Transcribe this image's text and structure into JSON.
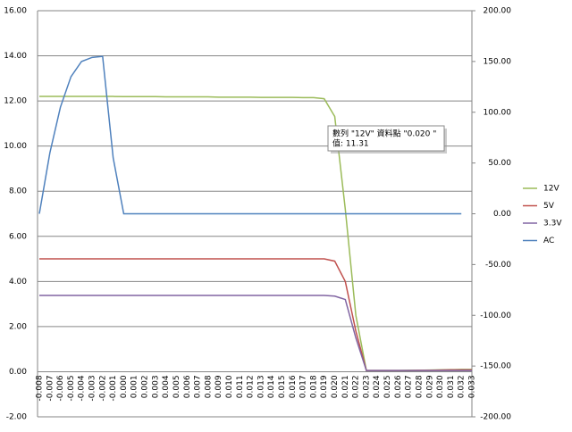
{
  "chart_data": {
    "type": "line",
    "categories": [
      "-0.008",
      "-0.007",
      "-0.006",
      "-0.005",
      "-0.004",
      "-0.003",
      "-0.002",
      "-0.001",
      "0.000",
      "0.001",
      "0.002",
      "0.003",
      "0.004",
      "0.005",
      "0.006",
      "0.007",
      "0.008",
      "0.009",
      "0.010",
      "0.011",
      "0.012",
      "0.013",
      "0.014",
      "0.015",
      "0.016",
      "0.017",
      "0.018",
      "0.019",
      "0.020",
      "0.021",
      "0.022",
      "0.023",
      "0.024",
      "0.025",
      "0.026",
      "0.027",
      "0.028",
      "0.029",
      "0.030",
      "0.031",
      "0.032",
      "0.033"
    ],
    "series": [
      {
        "name": "12V",
        "color": "#9bbb59",
        "values": [
          12.2,
          12.2,
          12.2,
          12.2,
          12.2,
          12.2,
          12.2,
          12.2,
          12.19,
          12.19,
          12.19,
          12.19,
          12.18,
          12.18,
          12.18,
          12.18,
          12.18,
          12.17,
          12.17,
          12.17,
          12.17,
          12.16,
          12.16,
          12.16,
          12.16,
          12.15,
          12.15,
          12.1,
          11.31,
          7.2,
          2.5,
          0.05,
          0.05,
          0.05,
          0.05,
          0.06,
          0.06,
          0.07,
          0.08,
          0.09,
          0.1,
          0.1
        ]
      },
      {
        "name": "5V",
        "color": "#c0504d",
        "values": [
          5.0,
          5.0,
          5.0,
          5.0,
          5.0,
          5.0,
          5.0,
          5.0,
          5.0,
          5.0,
          5.0,
          5.0,
          5.0,
          5.0,
          5.0,
          5.0,
          5.0,
          5.0,
          5.0,
          5.0,
          5.0,
          5.0,
          5.0,
          5.0,
          5.0,
          5.0,
          5.0,
          5.0,
          4.9,
          4.0,
          1.8,
          0.05,
          0.05,
          0.05,
          0.05,
          0.05,
          0.06,
          0.06,
          0.07,
          0.08,
          0.08,
          0.08
        ]
      },
      {
        "name": "3.3V",
        "color": "#8064a2",
        "values": [
          3.38,
          3.38,
          3.38,
          3.38,
          3.38,
          3.38,
          3.38,
          3.38,
          3.38,
          3.38,
          3.38,
          3.38,
          3.38,
          3.38,
          3.38,
          3.38,
          3.38,
          3.38,
          3.38,
          3.38,
          3.38,
          3.38,
          3.38,
          3.38,
          3.38,
          3.38,
          3.38,
          3.38,
          3.35,
          3.2,
          1.5,
          0.05,
          0.05,
          0.05,
          0.05,
          0.05,
          0.05,
          0.05,
          0.05,
          0.05,
          0.05,
          0.05
        ]
      },
      {
        "name": "AC",
        "color": "#4f81bd",
        "axis": "y2",
        "values": [
          0,
          60,
          105,
          135,
          150,
          154,
          155,
          55,
          0,
          0,
          0,
          0,
          0,
          0,
          0,
          0,
          0,
          0,
          0,
          0,
          0,
          0,
          0,
          0,
          0,
          0,
          0,
          0,
          0,
          0,
          0,
          0,
          0,
          0,
          0,
          0,
          0,
          0,
          0,
          0,
          0,
          null
        ]
      }
    ],
    "ylim": [
      -2,
      16
    ],
    "yticks": [
      {
        "value": -2,
        "label": "-2.00"
      },
      {
        "value": 0,
        "label": "0.00"
      },
      {
        "value": 2,
        "label": "2.00"
      },
      {
        "value": 4,
        "label": "4.00"
      },
      {
        "value": 6,
        "label": "6.00"
      },
      {
        "value": 8,
        "label": "8.00"
      },
      {
        "value": 10,
        "label": "10.00"
      },
      {
        "value": 12,
        "label": "12.00"
      },
      {
        "value": 14,
        "label": "14.00"
      },
      {
        "value": 16,
        "label": "16.00"
      }
    ],
    "y2lim": [
      -200,
      200
    ],
    "y2ticks": [
      {
        "value": -200,
        "label": "-200.00"
      },
      {
        "value": -150,
        "label": "-150.00"
      },
      {
        "value": -100,
        "label": "-100.00"
      },
      {
        "value": -50,
        "label": "-50.00"
      },
      {
        "value": 0,
        "label": "0.00"
      },
      {
        "value": 50,
        "label": "50.00"
      },
      {
        "value": 100,
        "label": "100.00"
      },
      {
        "value": 150,
        "label": "150.00"
      },
      {
        "value": 200,
        "label": "200.00"
      }
    ],
    "grid": true,
    "legend": "right",
    "annotations": [
      "數列 \"12V\" 資料點 \"0.020 \"",
      "值: 11.31"
    ]
  }
}
